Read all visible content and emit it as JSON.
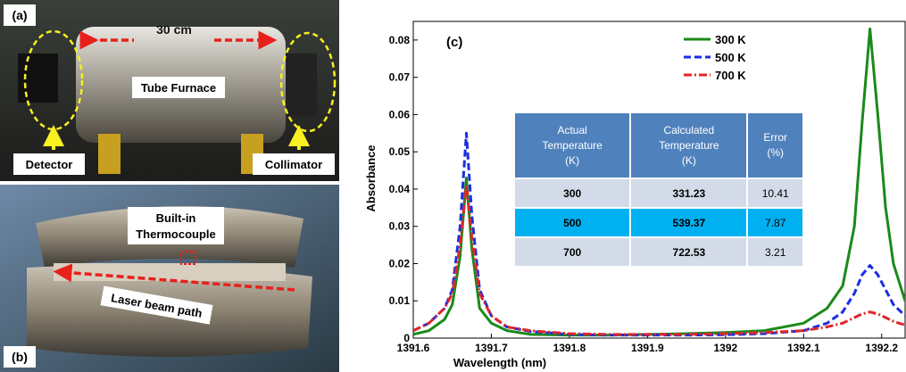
{
  "panels": {
    "a": {
      "label": "(a)",
      "length": "30 cm",
      "furnace": "Tube Furnace",
      "detector": "Detector",
      "collimator": "Collimator"
    },
    "b": {
      "label": "(b)",
      "thermocouple": [
        "Built-in",
        "Thermocouple"
      ],
      "beam": "Laser beam path"
    }
  },
  "table": {
    "header": [
      [
        "Actual",
        "Temperature",
        "(K)"
      ],
      [
        "Calculated",
        "Temperature",
        "(K)"
      ],
      [
        "Error",
        "(%)"
      ]
    ],
    "rows": [
      [
        "300",
        "331.23",
        "10.41"
      ],
      [
        "500",
        "539.37",
        "7.87"
      ],
      [
        "700",
        "722.53",
        "3.21"
      ]
    ]
  },
  "chart_data": {
    "type": "line",
    "panel_label": "(c)",
    "x_label": "Wavelength (nm)",
    "y_label": "Absorbance",
    "x": [
      1391.6,
      1391.62,
      1391.64,
      1391.65,
      1391.66,
      1391.668,
      1391.675,
      1391.685,
      1391.7,
      1391.72,
      1391.75,
      1391.8,
      1391.85,
      1391.9,
      1391.95,
      1392.0,
      1392.05,
      1392.1,
      1392.13,
      1392.15,
      1392.165,
      1392.175,
      1392.185,
      1392.195,
      1392.205,
      1392.215,
      1392.23
    ],
    "series": [
      {
        "name": "300 K",
        "color": "#1a8a1a",
        "dash": "solid",
        "values": [
          0.001,
          0.002,
          0.005,
          0.009,
          0.022,
          0.043,
          0.024,
          0.008,
          0.004,
          0.002,
          0.001,
          0.0008,
          0.0008,
          0.001,
          0.0012,
          0.0015,
          0.002,
          0.004,
          0.008,
          0.014,
          0.03,
          0.058,
          0.083,
          0.06,
          0.035,
          0.02,
          0.01
        ]
      },
      {
        "name": "500 K",
        "color": "#1a2ee0",
        "dash": "dash",
        "values": [
          0.002,
          0.004,
          0.008,
          0.013,
          0.03,
          0.055,
          0.033,
          0.013,
          0.006,
          0.003,
          0.0018,
          0.001,
          0.0008,
          0.0008,
          0.0008,
          0.0009,
          0.0012,
          0.002,
          0.004,
          0.007,
          0.012,
          0.017,
          0.0195,
          0.017,
          0.013,
          0.009,
          0.006
        ]
      },
      {
        "name": "700 K",
        "color": "#e0262a",
        "dash": "dashdot",
        "values": [
          0.002,
          0.004,
          0.008,
          0.012,
          0.025,
          0.041,
          0.027,
          0.012,
          0.006,
          0.003,
          0.002,
          0.0012,
          0.001,
          0.001,
          0.001,
          0.0012,
          0.0015,
          0.002,
          0.003,
          0.004,
          0.0055,
          0.0065,
          0.007,
          0.0065,
          0.0055,
          0.0045,
          0.0035
        ]
      }
    ],
    "xlim": [
      1391.6,
      1392.23
    ],
    "ylim": [
      0,
      0.085
    ],
    "xticks": [
      1391.6,
      1391.7,
      1391.8,
      1391.9,
      1392,
      1392.1,
      1392.2
    ],
    "yticks": [
      0,
      0.01,
      0.02,
      0.03,
      0.04,
      0.05,
      0.06,
      0.07,
      0.08
    ],
    "grid": false,
    "legend": "upper right"
  }
}
